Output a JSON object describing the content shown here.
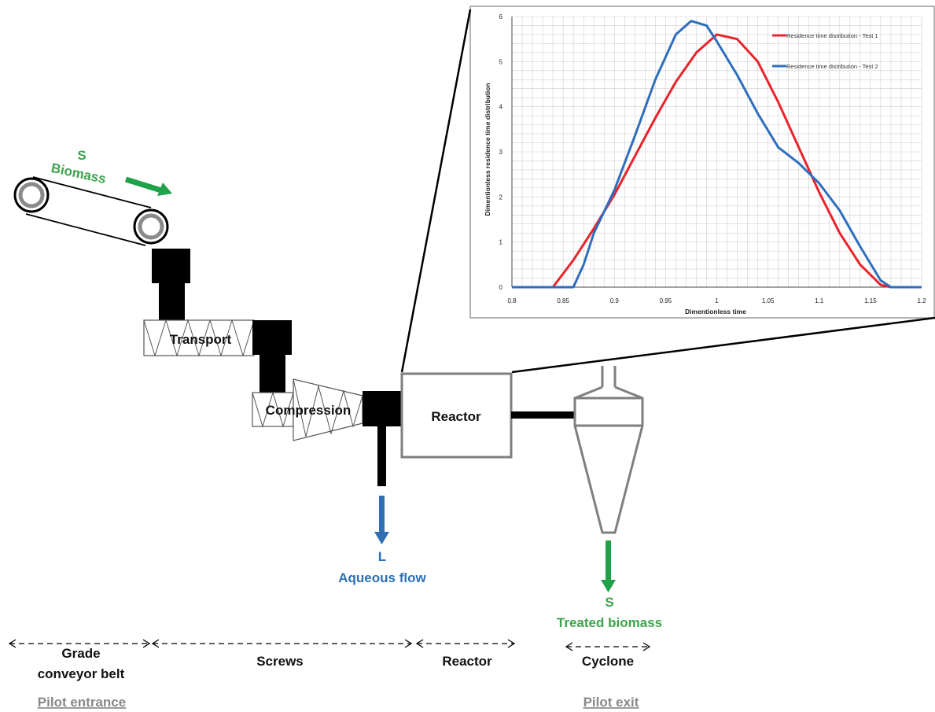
{
  "colors": {
    "solid_green": "#3fa34d",
    "liquid_blue": "#2e6fb3",
    "equipment_black": "#000000",
    "reactor_gray": "#7f7f7f",
    "series1_red": "#e8242b",
    "series2_blue": "#2f6ebd"
  },
  "biomass_input": {
    "phase": "S",
    "label": "Biomass"
  },
  "equipment": {
    "transport": "Transport",
    "compression": "Compression",
    "reactor": "Reactor"
  },
  "aqueous_output": {
    "phase": "L",
    "label": "Aqueous flow"
  },
  "treated_output": {
    "phase": "S",
    "label": "Treated biomass"
  },
  "sections": {
    "grade_line1": "Grade",
    "grade_line2": "conveyor belt",
    "screws": "Screws",
    "reactor": "Reactor",
    "cyclone": "Cyclone"
  },
  "footer": {
    "entrance": "Pilot entrance",
    "exit": "Pilot exit"
  },
  "chart_data": {
    "type": "line",
    "title": "",
    "xlabel": "Dimentionless time",
    "ylabel": "Dimentionless residence time distribution",
    "xlim": [
      0.8,
      1.2
    ],
    "ylim": [
      0,
      6
    ],
    "xticks": [
      "0.8",
      "0.85",
      "0.9",
      "0.95",
      "1",
      "1.05",
      "1.1",
      "1.15",
      "1.2"
    ],
    "yticks": [
      "0",
      "1",
      "2",
      "3",
      "4",
      "5",
      "6"
    ],
    "grid": true,
    "legend_position": "top-right",
    "series": [
      {
        "name": "Residence time distribution - Test 1",
        "color": "#e8242b",
        "x": [
          0.8,
          0.84,
          0.86,
          0.88,
          0.9,
          0.92,
          0.94,
          0.96,
          0.98,
          1.0,
          1.02,
          1.04,
          1.06,
          1.08,
          1.1,
          1.12,
          1.14,
          1.16,
          1.17,
          1.2
        ],
        "y": [
          0,
          0,
          0.6,
          1.3,
          2.05,
          2.9,
          3.75,
          4.55,
          5.2,
          5.6,
          5.5,
          5.0,
          4.1,
          3.1,
          2.1,
          1.2,
          0.5,
          0.05,
          0,
          0
        ]
      },
      {
        "name": "Residence time distribution - Test 2",
        "color": "#2f6ebd",
        "x": [
          0.8,
          0.86,
          0.87,
          0.88,
          0.9,
          0.92,
          0.94,
          0.96,
          0.975,
          0.99,
          1.0,
          1.02,
          1.04,
          1.06,
          1.08,
          1.1,
          1.12,
          1.14,
          1.16,
          1.17,
          1.2
        ],
        "y": [
          0,
          0,
          0.5,
          1.2,
          2.15,
          3.35,
          4.6,
          5.6,
          5.9,
          5.8,
          5.45,
          4.7,
          3.85,
          3.1,
          2.75,
          2.3,
          1.7,
          0.9,
          0.15,
          0,
          0
        ]
      }
    ]
  }
}
